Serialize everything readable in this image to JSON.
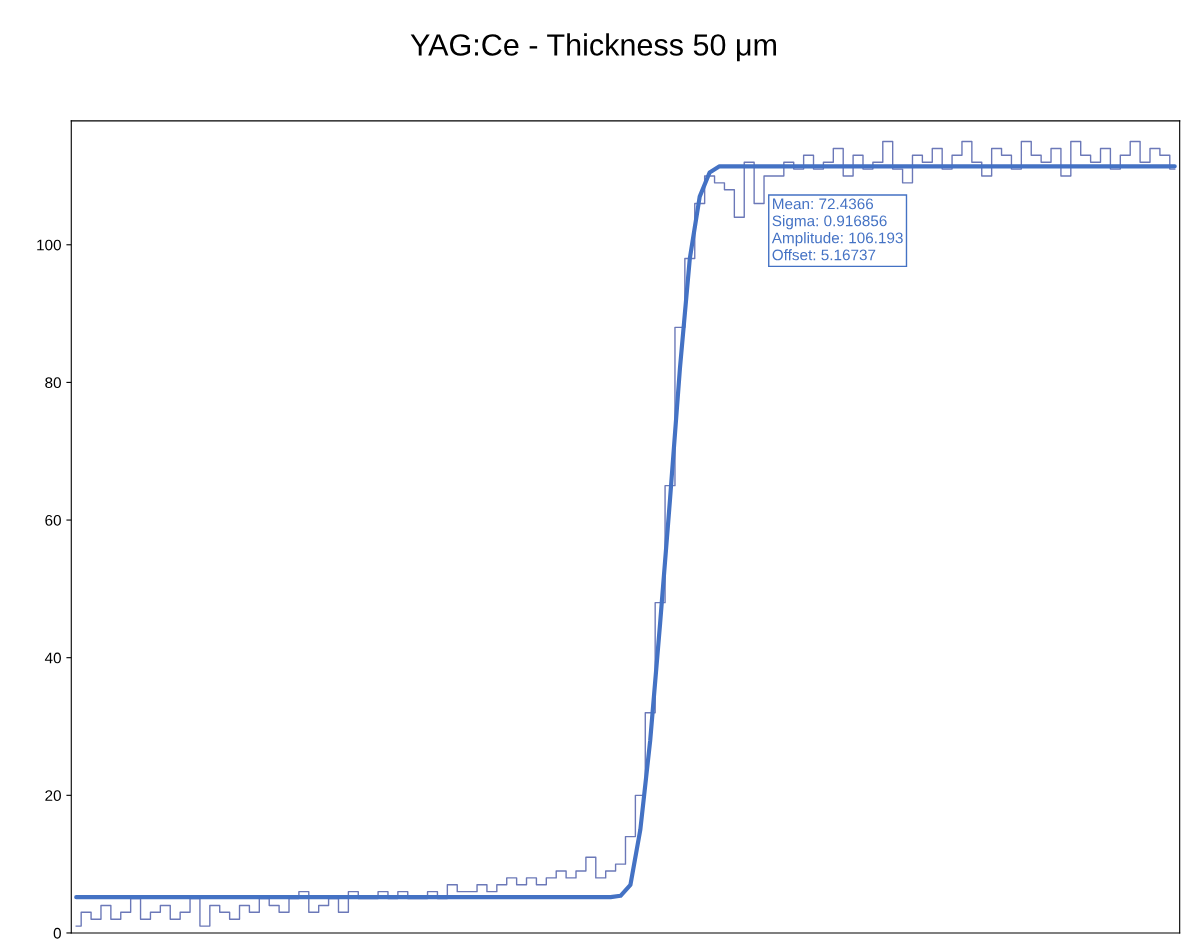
{
  "chart_data": {
    "type": "line",
    "title": "YAG:Ce - Thickness 50 μm",
    "categories": [
      null,
      null,
      null,
      null,
      null,
      null,
      null,
      null,
      null,
      null,
      null,
      null,
      null,
      null,
      null,
      null,
      null,
      null,
      null,
      null,
      null,
      null,
      null,
      null,
      null,
      null,
      null,
      null,
      null,
      null,
      null,
      null,
      null,
      null,
      null,
      null,
      null,
      null,
      null,
      null,
      null,
      null,
      null,
      null,
      null,
      null,
      null,
      null,
      null,
      null,
      null,
      null,
      null,
      null,
      null,
      null,
      null,
      null,
      null,
      null,
      null,
      null,
      null,
      null,
      null,
      null,
      null,
      null,
      null,
      null,
      null,
      null,
      null,
      null,
      null,
      null,
      null,
      null,
      null,
      null,
      null,
      null,
      null,
      null,
      null,
      null,
      null,
      null,
      null,
      null,
      null,
      null,
      null,
      null,
      null,
      null,
      null,
      null,
      null,
      null,
      null,
      null,
      null,
      null,
      null,
      null,
      null,
      null,
      null,
      null,
      null,
      null
    ],
    "series": [
      {
        "type": "step",
        "color": "#6b78b8",
        "values": [
          1,
          3,
          2,
          4,
          2,
          3,
          5,
          2,
          3,
          4,
          2,
          3,
          5,
          1,
          4,
          3,
          2,
          4,
          3,
          5,
          4,
          3,
          5,
          6,
          3,
          4,
          5,
          3,
          6,
          5,
          5,
          6,
          5,
          6,
          5,
          5,
          6,
          5,
          7,
          6,
          6,
          7,
          6,
          7,
          8,
          7,
          8,
          7,
          8,
          9,
          8,
          9,
          11,
          8,
          9,
          10,
          14,
          20,
          32,
          48,
          65,
          88,
          98,
          106,
          110,
          109,
          108,
          104,
          112,
          106,
          110,
          110,
          112,
          111,
          113,
          111,
          112,
          114,
          110,
          113,
          111,
          112,
          115,
          111,
          109,
          113,
          112,
          114,
          111,
          113,
          115,
          112,
          110,
          114,
          113,
          111,
          115,
          113,
          112,
          114,
          110,
          115,
          113,
          112,
          114,
          111,
          113,
          115,
          112,
          114,
          113,
          111
        ]
      },
      {
        "color": "#4472c4",
        "values": [
          5.2,
          5.2,
          5.2,
          5.2,
          5.2,
          5.2,
          5.2,
          5.2,
          5.2,
          5.2,
          5.2,
          5.2,
          5.2,
          5.2,
          5.2,
          5.2,
          5.2,
          5.2,
          5.2,
          5.2,
          5.2,
          5.2,
          5.2,
          5.2,
          5.2,
          5.2,
          5.2,
          5.2,
          5.2,
          5.2,
          5.2,
          5.2,
          5.2,
          5.2,
          5.2,
          5.2,
          5.2,
          5.2,
          5.2,
          5.2,
          5.2,
          5.2,
          5.2,
          5.2,
          5.2,
          5.2,
          5.2,
          5.2,
          5.2,
          5.2,
          5.2,
          5.2,
          5.2,
          5.2,
          5.2,
          5.4,
          7,
          15,
          28,
          45,
          63,
          82,
          98,
          107,
          110.5,
          111.4,
          111.4,
          111.4,
          111.4,
          111.4,
          111.4,
          111.4,
          111.4,
          111.4,
          111.4,
          111.4,
          111.4,
          111.4,
          111.4,
          111.4,
          111.4,
          111.4,
          111.4,
          111.4,
          111.4,
          111.4,
          111.4,
          111.4,
          111.4,
          111.4,
          111.4,
          111.4,
          111.4,
          111.4,
          111.4,
          111.4,
          111.4,
          111.4,
          111.4,
          111.4,
          111.4,
          111.4,
          111.4,
          111.4,
          111.4,
          111.4,
          111.4,
          111.4,
          111.4,
          111.4,
          111.4,
          111.4
        ]
      }
    ],
    "ylim": [
      0,
      118
    ],
    "yticks": [
      0,
      20,
      40,
      60,
      80,
      100
    ],
    "grid": false,
    "tick_labels": "y",
    "annotations": [
      "Mean: 72.4366",
      "Sigma: 0.916856",
      "Amplitude: 106.193",
      "Offset: 5.16737"
    ]
  }
}
